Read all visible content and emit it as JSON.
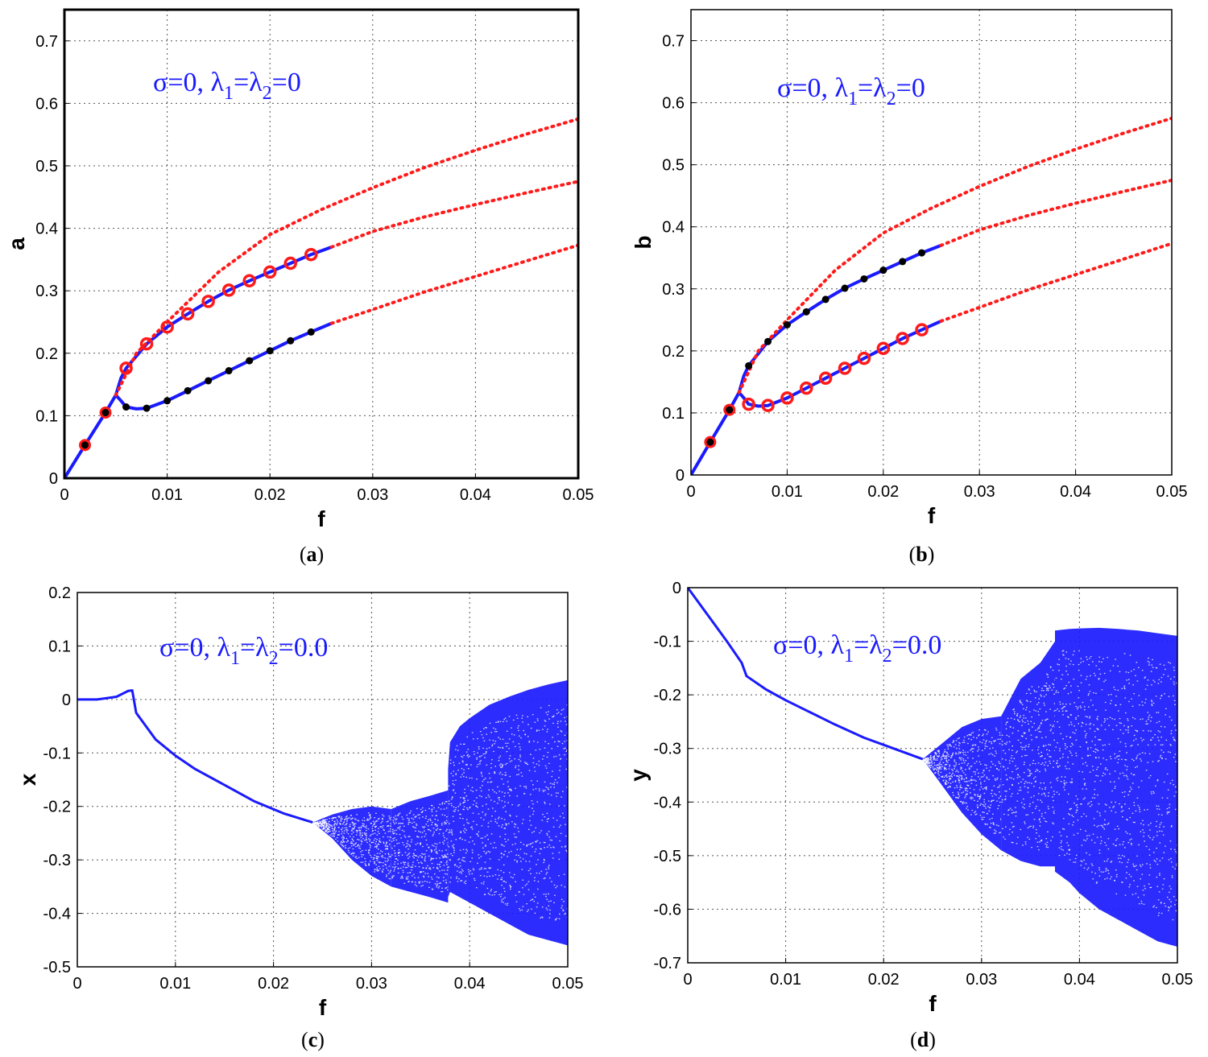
{
  "chart_data": [
    {
      "id": "a",
      "type": "line",
      "caption": "a",
      "xlabel": "f",
      "ylabel": "a",
      "xlim": [
        0,
        0.05
      ],
      "ylim": [
        0,
        0.75
      ],
      "xticks": [
        "0",
        "0.01",
        "0.02",
        "0.03",
        "0.04",
        "0.05"
      ],
      "yticks": [
        "0",
        "0.1",
        "0.2",
        "0.3",
        "0.4",
        "0.5",
        "0.6",
        "0.7"
      ],
      "grid": true,
      "annotation": {
        "prefix": "σ=0, λ",
        "sub1": "1",
        "mid": "=λ",
        "sub2": "2",
        "suffix": "=0"
      },
      "series": [
        {
          "name": "stable-lower-start",
          "style": "solid",
          "color": "#1a1aff",
          "x": [
            0,
            0.002,
            0.004,
            0.005
          ],
          "y": [
            0,
            0.053,
            0.105,
            0.133
          ]
        },
        {
          "name": "stable-upper",
          "style": "solid",
          "color": "#1a1aff",
          "x": [
            0.005,
            0.0055,
            0.006,
            0.008,
            0.01,
            0.012,
            0.014,
            0.016,
            0.018,
            0.02,
            0.022,
            0.024,
            0.026
          ],
          "y": [
            0.133,
            0.16,
            0.176,
            0.215,
            0.242,
            0.263,
            0.283,
            0.301,
            0.316,
            0.33,
            0.344,
            0.358,
            0.37
          ]
        },
        {
          "name": "stable-lower-branch",
          "style": "solid",
          "color": "#1a1aff",
          "x": [
            0.005,
            0.0055,
            0.006,
            0.007,
            0.008,
            0.01,
            0.012,
            0.014,
            0.016,
            0.018,
            0.02,
            0.022,
            0.024,
            0.026
          ],
          "y": [
            0.133,
            0.124,
            0.114,
            0.111,
            0.112,
            0.124,
            0.14,
            0.156,
            0.172,
            0.188,
            0.204,
            0.22,
            0.234,
            0.248
          ]
        },
        {
          "name": "unstable-top",
          "style": "dotted",
          "color": "#ff1a1a",
          "x": [
            0.005,
            0.007,
            0.01,
            0.015,
            0.02,
            0.025,
            0.03,
            0.035,
            0.04,
            0.045,
            0.05
          ],
          "y": [
            0.133,
            0.2,
            0.25,
            0.33,
            0.39,
            0.43,
            0.465,
            0.497,
            0.525,
            0.551,
            0.575
          ]
        },
        {
          "name": "unstable-middle",
          "style": "dotted",
          "color": "#ff1a1a",
          "x": [
            0.026,
            0.03,
            0.035,
            0.04,
            0.045,
            0.05
          ],
          "y": [
            0.37,
            0.395,
            0.418,
            0.438,
            0.457,
            0.475
          ]
        },
        {
          "name": "unstable-bottom",
          "style": "dotted",
          "color": "#ff1a1a",
          "x": [
            0.026,
            0.03,
            0.035,
            0.04,
            0.045,
            0.05
          ],
          "y": [
            0.248,
            0.27,
            0.298,
            0.323,
            0.348,
            0.373
          ]
        }
      ],
      "markers": [
        {
          "kind": "ringed",
          "x": [
            0.002,
            0.004
          ],
          "y": [
            0.053,
            0.105
          ]
        },
        {
          "kind": "ring",
          "x": [
            0.006,
            0.008,
            0.01,
            0.012,
            0.014,
            0.016,
            0.018,
            0.02,
            0.022,
            0.024
          ],
          "y": [
            0.176,
            0.215,
            0.242,
            0.263,
            0.283,
            0.301,
            0.316,
            0.33,
            0.344,
            0.358
          ]
        },
        {
          "kind": "dot",
          "x": [
            0.006,
            0.008,
            0.01,
            0.012,
            0.014,
            0.016,
            0.018,
            0.02,
            0.022,
            0.024
          ],
          "y": [
            0.114,
            0.112,
            0.124,
            0.14,
            0.156,
            0.172,
            0.188,
            0.204,
            0.22,
            0.234
          ]
        }
      ]
    },
    {
      "id": "b",
      "type": "line",
      "caption": "b",
      "xlabel": "f",
      "ylabel": "b",
      "xlim": [
        0,
        0.05
      ],
      "ylim": [
        0,
        0.75
      ],
      "xticks": [
        "0",
        "0.01",
        "0.02",
        "0.03",
        "0.04",
        "0.05"
      ],
      "yticks": [
        "0",
        "0.1",
        "0.2",
        "0.3",
        "0.4",
        "0.5",
        "0.6",
        "0.7"
      ],
      "grid": true,
      "annotation": {
        "prefix": "σ=0, λ",
        "sub1": "1",
        "mid": "=λ",
        "sub2": "2",
        "suffix": "=0"
      },
      "series": [
        {
          "name": "stable-lower-start",
          "style": "solid",
          "color": "#1a1aff",
          "x": [
            0,
            0.002,
            0.004,
            0.005
          ],
          "y": [
            0,
            0.053,
            0.105,
            0.133
          ]
        },
        {
          "name": "stable-upper",
          "style": "solid",
          "color": "#1a1aff",
          "x": [
            0.005,
            0.0055,
            0.006,
            0.008,
            0.01,
            0.012,
            0.014,
            0.016,
            0.018,
            0.02,
            0.022,
            0.024,
            0.026
          ],
          "y": [
            0.133,
            0.16,
            0.176,
            0.215,
            0.242,
            0.263,
            0.283,
            0.301,
            0.316,
            0.33,
            0.344,
            0.358,
            0.37
          ]
        },
        {
          "name": "stable-lower-branch",
          "style": "solid",
          "color": "#1a1aff",
          "x": [
            0.005,
            0.0055,
            0.006,
            0.007,
            0.008,
            0.01,
            0.012,
            0.014,
            0.016,
            0.018,
            0.02,
            0.022,
            0.024,
            0.026
          ],
          "y": [
            0.133,
            0.124,
            0.114,
            0.111,
            0.112,
            0.124,
            0.14,
            0.156,
            0.172,
            0.188,
            0.204,
            0.22,
            0.234,
            0.248
          ]
        },
        {
          "name": "unstable-top",
          "style": "dotted",
          "color": "#ff1a1a",
          "x": [
            0.005,
            0.007,
            0.01,
            0.015,
            0.02,
            0.025,
            0.03,
            0.035,
            0.04,
            0.045,
            0.05
          ],
          "y": [
            0.133,
            0.2,
            0.25,
            0.33,
            0.39,
            0.43,
            0.465,
            0.497,
            0.525,
            0.551,
            0.575
          ]
        },
        {
          "name": "unstable-middle",
          "style": "dotted",
          "color": "#ff1a1a",
          "x": [
            0.026,
            0.03,
            0.035,
            0.04,
            0.045,
            0.05
          ],
          "y": [
            0.37,
            0.395,
            0.418,
            0.438,
            0.457,
            0.475
          ]
        },
        {
          "name": "unstable-bottom",
          "style": "dotted",
          "color": "#ff1a1a",
          "x": [
            0.026,
            0.03,
            0.035,
            0.04,
            0.045,
            0.05
          ],
          "y": [
            0.248,
            0.27,
            0.298,
            0.323,
            0.348,
            0.373
          ]
        }
      ],
      "markers": [
        {
          "kind": "ringed",
          "x": [
            0.002,
            0.004
          ],
          "y": [
            0.053,
            0.105
          ]
        },
        {
          "kind": "dot",
          "x": [
            0.006,
            0.008,
            0.01,
            0.012,
            0.014,
            0.016,
            0.018,
            0.02,
            0.022,
            0.024
          ],
          "y": [
            0.176,
            0.215,
            0.242,
            0.263,
            0.283,
            0.301,
            0.316,
            0.33,
            0.344,
            0.358
          ]
        },
        {
          "kind": "ring",
          "x": [
            0.006,
            0.008,
            0.01,
            0.012,
            0.014,
            0.016,
            0.018,
            0.02,
            0.022,
            0.024
          ],
          "y": [
            0.114,
            0.112,
            0.124,
            0.14,
            0.156,
            0.172,
            0.188,
            0.204,
            0.22,
            0.234
          ]
        }
      ]
    },
    {
      "id": "c",
      "type": "scatter",
      "caption": "c",
      "xlabel": "f",
      "ylabel": "x",
      "xlim": [
        0,
        0.05
      ],
      "ylim": [
        -0.5,
        0.2
      ],
      "xticks": [
        "0",
        "0.01",
        "0.02",
        "0.03",
        "0.04",
        "0.05"
      ],
      "yticks": [
        "0.2",
        "0.1",
        "0",
        "-0.1",
        "-0.2",
        "-0.3",
        "-0.4",
        "-0.5"
      ],
      "grid": true,
      "annotation": {
        "prefix": "σ=0, λ",
        "sub1": "1",
        "mid": "=λ",
        "sub2": "2",
        "suffix": "=0.0"
      },
      "color": "#1a1aff",
      "single_branch": {
        "x": [
          0,
          0.002,
          0.004,
          0.0052,
          0.0056,
          0.006,
          0.008,
          0.01,
          0.012,
          0.015,
          0.018,
          0.021,
          0.024
        ],
        "y": [
          0,
          0.0,
          0.005,
          0.016,
          0.017,
          -0.025,
          -0.075,
          -0.105,
          -0.13,
          -0.16,
          -0.19,
          -0.213,
          -0.23
        ]
      },
      "chaotic_bands": [
        {
          "x": [
            0.024,
            0.026,
            0.028,
            0.03,
            0.032
          ],
          "upper": [
            -0.23,
            -0.215,
            -0.205,
            -0.2,
            -0.205
          ],
          "lower": [
            -0.23,
            -0.26,
            -0.3,
            -0.33,
            -0.35
          ]
        },
        {
          "x": [
            0.032,
            0.034,
            0.036,
            0.0378
          ],
          "upper": [
            -0.205,
            -0.19,
            -0.18,
            -0.17
          ],
          "lower": [
            -0.35,
            -0.36,
            -0.37,
            -0.38
          ]
        },
        {
          "x": [
            0.0378,
            0.038,
            0.039,
            0.04,
            0.042,
            0.044,
            0.046,
            0.048,
            0.05
          ],
          "upper": [
            -0.13,
            -0.08,
            -0.05,
            -0.035,
            -0.01,
            0.005,
            0.018,
            0.028,
            0.036
          ],
          "lower": [
            -0.37,
            -0.36,
            -0.37,
            -0.38,
            -0.4,
            -0.42,
            -0.44,
            -0.45,
            -0.46
          ]
        }
      ]
    },
    {
      "id": "d",
      "type": "scatter",
      "caption": "d",
      "xlabel": "f",
      "ylabel": "y",
      "xlim": [
        0,
        0.05
      ],
      "ylim": [
        -0.7,
        0
      ],
      "xticks": [
        "0",
        "0.01",
        "0.02",
        "0.03",
        "0.04",
        "0.05"
      ],
      "yticks": [
        "0",
        "-0.1",
        "-0.2",
        "-0.3",
        "-0.4",
        "-0.5",
        "-0.6",
        "-0.7"
      ],
      "grid": true,
      "annotation": {
        "prefix": "σ=0, λ",
        "sub1": "1",
        "mid": "=λ",
        "sub2": "2",
        "suffix": "=0.0"
      },
      "color": "#1a1aff",
      "single_branch": {
        "x": [
          0,
          0.002,
          0.004,
          0.0055,
          0.006,
          0.008,
          0.01,
          0.012,
          0.015,
          0.018,
          0.021,
          0.024
        ],
        "y": [
          0,
          -0.05,
          -0.1,
          -0.14,
          -0.165,
          -0.19,
          -0.21,
          -0.228,
          -0.255,
          -0.28,
          -0.3,
          -0.32
        ]
      },
      "chaotic_bands": [
        {
          "x": [
            0.024,
            0.026,
            0.028,
            0.03,
            0.032
          ],
          "upper": [
            -0.32,
            -0.29,
            -0.26,
            -0.245,
            -0.24
          ],
          "lower": [
            -0.32,
            -0.37,
            -0.42,
            -0.46,
            -0.49
          ]
        },
        {
          "x": [
            0.032,
            0.034,
            0.036,
            0.0375
          ],
          "upper": [
            -0.24,
            -0.17,
            -0.14,
            -0.1
          ],
          "lower": [
            -0.49,
            -0.51,
            -0.52,
            -0.52
          ]
        },
        {
          "x": [
            0.0375,
            0.039,
            0.04,
            0.042,
            0.044,
            0.046,
            0.048,
            0.05
          ],
          "upper": [
            -0.08,
            -0.077,
            -0.076,
            -0.075,
            -0.077,
            -0.08,
            -0.085,
            -0.09
          ],
          "lower": [
            -0.53,
            -0.55,
            -0.57,
            -0.6,
            -0.62,
            -0.64,
            -0.66,
            -0.67
          ]
        }
      ]
    }
  ]
}
